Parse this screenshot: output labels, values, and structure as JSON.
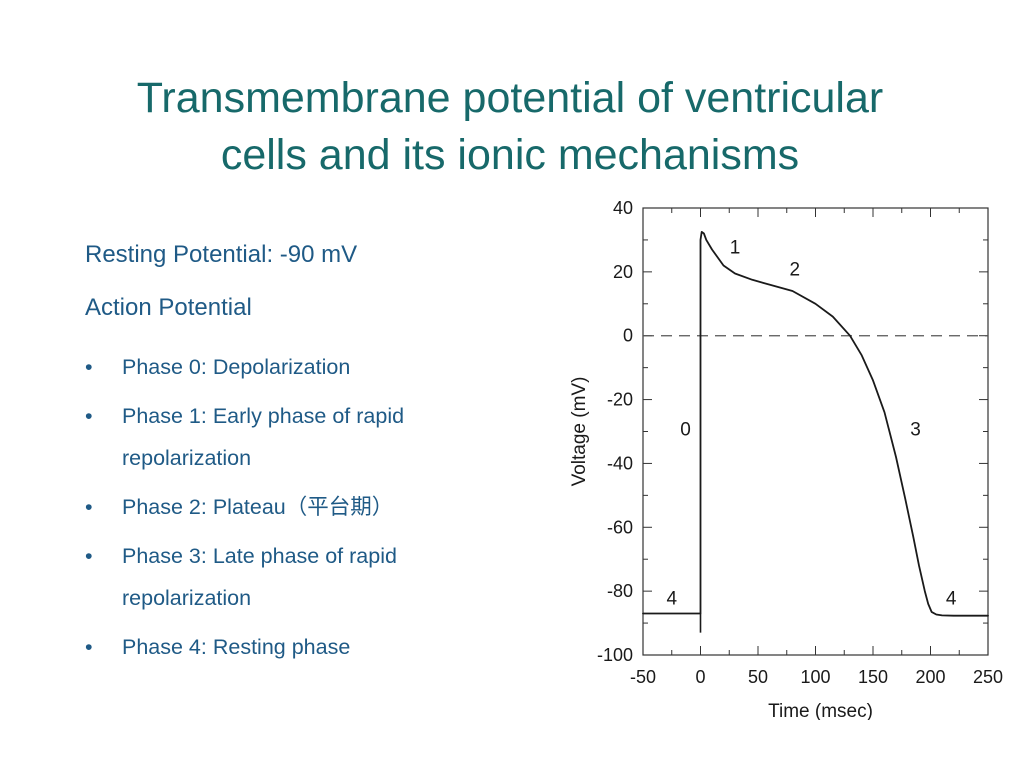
{
  "title": {
    "line1": "Transmembrane potential of ventricular",
    "line2": "cells and its ionic mechanisms"
  },
  "content": {
    "resting": "Resting Potential: -90 mV",
    "action": "Action Potential",
    "bullets": [
      {
        "marker": "•",
        "line1": "Phase 0: Depolarization",
        "line2": ""
      },
      {
        "marker": "•",
        "line1": "Phase 1: Early phase of rapid",
        "line2": "repolarization"
      },
      {
        "marker": "•",
        "line1": "Phase 2: Plateau（平台期）",
        "line2": ""
      },
      {
        "marker": "•",
        "line1": "Phase 3: Late phase of rapid",
        "line2": "repolarization"
      },
      {
        "marker": "•",
        "line1": "Phase 4: Resting phase",
        "line2": ""
      }
    ]
  },
  "chart_data": {
    "type": "line",
    "xlabel": "Time  (msec)",
    "ylabel": "Voltage (mV)",
    "xlim": [
      -50,
      250
    ],
    "ylim": [
      -100,
      40
    ],
    "xticks": [
      "-50",
      "0",
      "50",
      "100",
      "150",
      "200",
      "250"
    ],
    "yticks": [
      "40",
      "20",
      "0",
      "-20",
      "-40",
      "-60",
      "-80",
      "-100"
    ],
    "reference_line": {
      "y": 0,
      "style": "dashed"
    },
    "series": [
      {
        "x": [
          -50,
          0,
          0,
          1,
          3,
          5,
          10,
          20,
          30,
          45,
          60,
          80,
          100,
          115,
          130,
          140,
          150,
          160,
          170,
          178,
          185,
          190,
          195,
          198,
          201,
          205,
          210,
          220,
          250
        ],
        "y": [
          -87,
          -87,
          30,
          32.5,
          32,
          30,
          27,
          22,
          19.5,
          17.5,
          16,
          14,
          10,
          6,
          0,
          -6,
          -14,
          -24,
          -38,
          -51,
          -63,
          -72,
          -80,
          -84,
          -86.5,
          -87.3,
          -87.6,
          -87.7,
          -87.7
        ]
      }
    ],
    "baseline_stub": {
      "x": 0,
      "y_from": -87,
      "y_to": -93
    },
    "annotations": [
      {
        "text": "1",
        "x": 30,
        "y": 28
      },
      {
        "text": "2",
        "x": 82,
        "y": 21
      },
      {
        "text": "0",
        "x": -13,
        "y": -29
      },
      {
        "text": "3",
        "x": 187,
        "y": -29
      },
      {
        "text": "4",
        "x": -25,
        "y": -82
      },
      {
        "text": "4",
        "x": 218,
        "y": -82
      }
    ],
    "colors": {
      "line": "#1a1a1a",
      "axis": "#333333",
      "text": "#1a1a1a"
    }
  }
}
